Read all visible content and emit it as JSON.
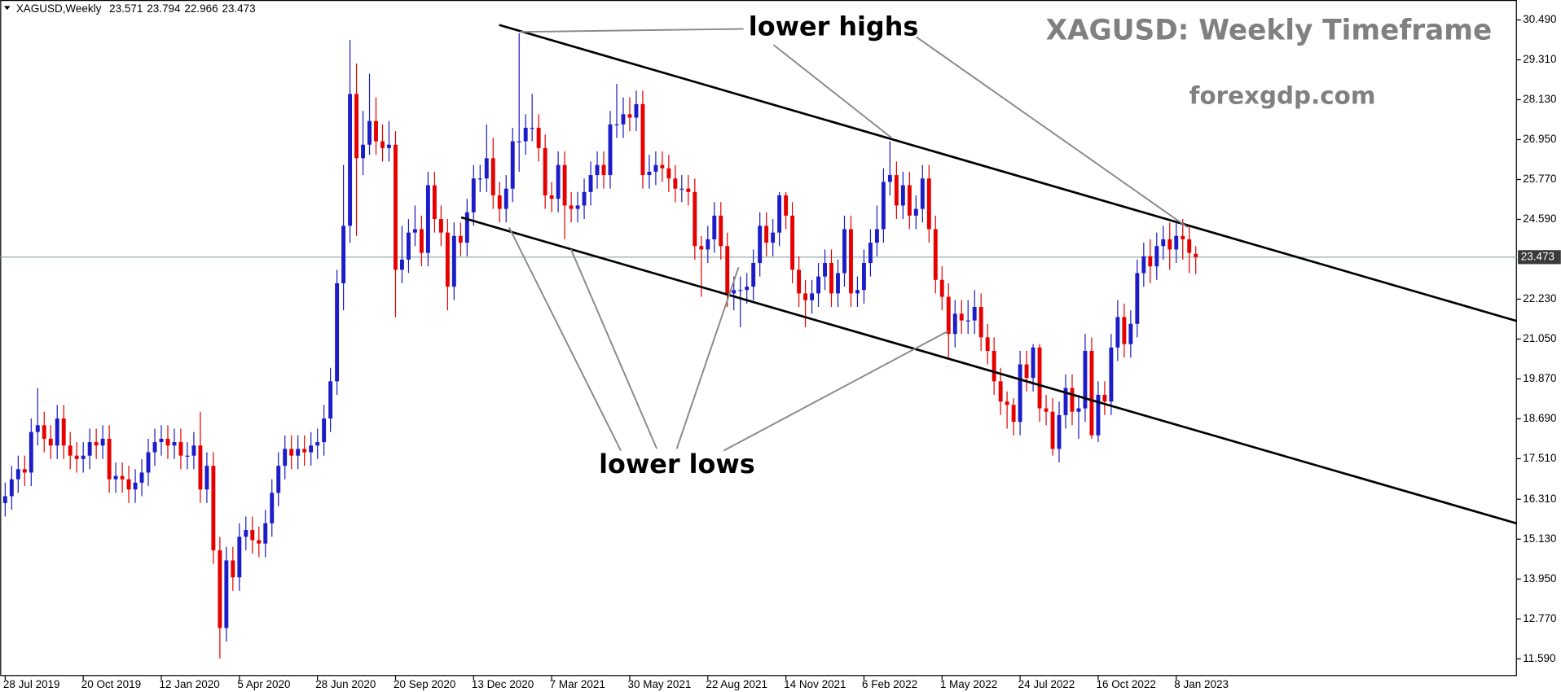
{
  "chart_data": {
    "type": "candlestick",
    "symbol": "XAGUSD,Weekly",
    "title": "XAGUSD: Weekly Timeframe",
    "subtitle": "forexgdp.com",
    "annotations": [
      "lower highs",
      "lower lows"
    ],
    "up_color": "#1c1cc8",
    "down_color": "#e60000",
    "last_price": 23.473,
    "ylim": [
      11.08,
      31.08
    ],
    "yticks": [
      {
        "value": 30.49,
        "label": "30.490"
      },
      {
        "value": 29.31,
        "label": "29.310"
      },
      {
        "value": 28.13,
        "label": "28.130"
      },
      {
        "value": 26.95,
        "label": "26.950"
      },
      {
        "value": 25.77,
        "label": "25.770"
      },
      {
        "value": 24.59,
        "label": "24.590"
      },
      {
        "value": 22.23,
        "label": "22.230"
      },
      {
        "value": 21.05,
        "label": "21.050"
      },
      {
        "value": 19.87,
        "label": "19.870"
      },
      {
        "value": 18.69,
        "label": "18.690"
      },
      {
        "value": 17.51,
        "label": "17.510"
      },
      {
        "value": 16.31,
        "label": "16.310"
      },
      {
        "value": 15.13,
        "label": "15.130"
      },
      {
        "value": 13.95,
        "label": "13.950"
      },
      {
        "value": 12.77,
        "label": "12.770"
      },
      {
        "value": 11.59,
        "label": "11.590"
      }
    ],
    "categories": [
      "28 Jul 2019",
      null,
      null,
      null,
      null,
      null,
      null,
      null,
      null,
      null,
      null,
      null,
      "20 Oct 2019",
      null,
      null,
      null,
      null,
      null,
      null,
      null,
      null,
      null,
      null,
      null,
      "12 Jan 2020",
      null,
      null,
      null,
      null,
      null,
      null,
      null,
      null,
      null,
      null,
      null,
      "5 Apr 2020",
      null,
      null,
      null,
      null,
      null,
      null,
      null,
      null,
      null,
      null,
      null,
      "28 Jun 2020",
      null,
      null,
      null,
      null,
      null,
      null,
      null,
      null,
      null,
      null,
      null,
      "20 Sep 2020",
      null,
      null,
      null,
      null,
      null,
      null,
      null,
      null,
      null,
      null,
      null,
      "13 Dec 2020",
      null,
      null,
      null,
      null,
      null,
      null,
      null,
      null,
      null,
      null,
      null,
      "7 Mar 2021",
      null,
      null,
      null,
      null,
      null,
      null,
      null,
      null,
      null,
      null,
      null,
      "30 May 2021",
      null,
      null,
      null,
      null,
      null,
      null,
      null,
      null,
      null,
      null,
      null,
      "22 Aug 2021",
      null,
      null,
      null,
      null,
      null,
      null,
      null,
      null,
      null,
      null,
      null,
      "14 Nov 2021",
      null,
      null,
      null,
      null,
      null,
      null,
      null,
      null,
      null,
      null,
      null,
      "6 Feb 2022",
      null,
      null,
      null,
      null,
      null,
      null,
      null,
      null,
      null,
      null,
      null,
      "1 May 2022",
      null,
      null,
      null,
      null,
      null,
      null,
      null,
      null,
      null,
      null,
      null,
      "24 Jul 2022",
      null,
      null,
      null,
      null,
      null,
      null,
      null,
      null,
      null,
      null,
      null,
      "16 Oct 2022",
      null,
      null,
      null,
      null,
      null,
      null,
      null,
      null,
      null,
      null,
      null,
      "8 Jan 2023",
      null,
      null,
      null
    ],
    "open": [
      16.2,
      16.4,
      16.9,
      17.2,
      17.1,
      18.3,
      18.5,
      18.1,
      17.9,
      18.7,
      17.9,
      17.6,
      17.5,
      17.6,
      18.0,
      17.9,
      18.1,
      16.9,
      17.0,
      16.9,
      16.6,
      16.8,
      17.1,
      17.7,
      18.0,
      18.1,
      17.9,
      18.0,
      17.6,
      17.6,
      17.9,
      16.6,
      17.3,
      14.8,
      12.5,
      14.5,
      14.0,
      15.2,
      15.4,
      15.1,
      15.0,
      15.6,
      16.5,
      17.3,
      17.8,
      17.6,
      17.8,
      17.7,
      17.9,
      18.0,
      18.7,
      19.8,
      22.7,
      24.4,
      28.3,
      26.4,
      26.8,
      27.5,
      26.9,
      26.7,
      26.8,
      23.1,
      23.4,
      24.2,
      24.3,
      23.6,
      25.6,
      24.6,
      24.2,
      22.6,
      24.1,
      23.9,
      24.8,
      25.8,
      25.8,
      26.4,
      25.3,
      24.9,
      25.5,
      26.9,
      26.9,
      27.3,
      27.3,
      26.7,
      25.3,
      25.2,
      26.2,
      25.0,
      24.9,
      25.0,
      25.4,
      25.9,
      26.2,
      25.9,
      27.4,
      27.4,
      27.7,
      27.6,
      28.0,
      25.9,
      26.0,
      26.2,
      26.1,
      25.8,
      25.5,
      25.5,
      25.4,
      23.8,
      23.7,
      24.0,
      24.7,
      23.8,
      22.4,
      22.5,
      22.5,
      22.6,
      23.3,
      24.4,
      23.9,
      24.2,
      25.3,
      24.7,
      23.1,
      22.4,
      22.2,
      22.4,
      22.9,
      23.3,
      22.4,
      23.0,
      24.3,
      22.4,
      22.5,
      23.3,
      23.9,
      24.3,
      25.7,
      25.9,
      25.0,
      25.6,
      24.7,
      24.9,
      25.8,
      24.3,
      22.8,
      22.3,
      21.2,
      21.8,
      21.6,
      21.6,
      22.0,
      21.1,
      20.7,
      19.8,
      19.2,
      19.1,
      18.6,
      20.3,
      19.9,
      20.8,
      19.0,
      18.9,
      17.8,
      18.8,
      19.6,
      18.9,
      19.0,
      20.7,
      18.2,
      19.4,
      19.2,
      20.8,
      21.7,
      20.9,
      21.5,
      23.0,
      23.5,
      23.2,
      23.8,
      24.0,
      23.7,
      24.1,
      24.0,
      23.571
    ],
    "high": [
      16.8,
      17.3,
      17.6,
      17.6,
      18.7,
      19.6,
      18.9,
      18.5,
      19.1,
      19.1,
      18.3,
      18.0,
      18.0,
      18.4,
      18.4,
      18.5,
      18.5,
      17.4,
      17.4,
      17.3,
      17.2,
      17.5,
      18.1,
      18.4,
      18.5,
      18.5,
      18.4,
      18.4,
      18.0,
      18.3,
      18.9,
      17.7,
      17.7,
      15.2,
      14.9,
      14.9,
      15.6,
      15.8,
      15.8,
      15.5,
      16.0,
      16.9,
      17.7,
      18.2,
      18.2,
      18.2,
      18.2,
      18.3,
      18.4,
      19.1,
      20.2,
      23.1,
      26.2,
      29.9,
      29.2,
      27.8,
      28.9,
      28.2,
      27.4,
      27.5,
      27.2,
      24.4,
      24.6,
      25.0,
      24.7,
      26.0,
      26.0,
      25.0,
      24.6,
      24.5,
      24.5,
      25.2,
      26.2,
      26.2,
      27.4,
      27.0,
      25.7,
      25.9,
      27.3,
      30.1,
      27.7,
      28.3,
      27.7,
      27.1,
      25.7,
      26.6,
      26.6,
      25.4,
      25.4,
      25.8,
      26.3,
      26.6,
      26.6,
      27.8,
      28.6,
      28.2,
      28.2,
      28.4,
      28.4,
      26.5,
      26.6,
      26.6,
      26.5,
      26.2,
      25.9,
      25.9,
      25.8,
      24.1,
      24.4,
      25.1,
      25.1,
      24.2,
      22.9,
      22.9,
      23.0,
      23.7,
      24.8,
      24.8,
      24.6,
      25.4,
      25.4,
      25.1,
      23.5,
      22.8,
      22.8,
      23.3,
      23.7,
      23.7,
      23.4,
      24.7,
      24.7,
      22.9,
      23.7,
      24.3,
      25.0,
      26.1,
      26.9,
      26.3,
      26.0,
      26.0,
      25.3,
      26.2,
      26.2,
      24.7,
      23.2,
      22.7,
      22.2,
      22.2,
      22.2,
      22.5,
      22.4,
      21.5,
      21.1,
      20.2,
      19.5,
      19.3,
      20.7,
      20.7,
      20.9,
      20.9,
      19.4,
      19.3,
      19.2,
      20.0,
      20.0,
      19.4,
      21.2,
      21.1,
      19.8,
      19.8,
      21.2,
      22.2,
      22.1,
      21.9,
      23.4,
      23.9,
      24.0,
      24.2,
      24.4,
      24.5,
      24.5,
      24.6,
      24.4,
      23.794
    ],
    "low": [
      15.8,
      16.0,
      16.5,
      16.7,
      16.7,
      17.9,
      17.7,
      17.5,
      17.5,
      17.5,
      17.2,
      17.1,
      17.1,
      17.2,
      17.5,
      17.5,
      16.5,
      16.5,
      16.5,
      16.2,
      16.2,
      16.4,
      16.7,
      17.3,
      17.6,
      17.5,
      17.5,
      17.2,
      17.2,
      17.2,
      16.2,
      16.2,
      14.4,
      11.6,
      12.1,
      13.6,
      13.6,
      14.8,
      14.7,
      14.6,
      14.6,
      15.2,
      16.1,
      16.9,
      17.2,
      17.2,
      17.3,
      17.3,
      17.5,
      17.6,
      18.3,
      19.4,
      21.9,
      23.9,
      24.1,
      25.9,
      26.5,
      26.5,
      26.3,
      26.3,
      21.7,
      22.7,
      23.0,
      23.8,
      23.2,
      23.2,
      24.2,
      23.8,
      21.9,
      22.2,
      23.5,
      23.5,
      24.4,
      25.4,
      25.4,
      24.9,
      24.5,
      24.5,
      25.1,
      26.0,
      26.5,
      26.9,
      26.3,
      24.9,
      24.8,
      24.8,
      24.0,
      24.5,
      24.5,
      24.6,
      25.0,
      25.5,
      25.5,
      25.5,
      27.0,
      27.0,
      27.2,
      27.2,
      25.5,
      25.5,
      25.6,
      25.7,
      25.4,
      25.1,
      25.1,
      25.0,
      23.4,
      22.3,
      23.3,
      23.6,
      23.4,
      22.0,
      21.9,
      21.4,
      22.1,
      22.2,
      22.9,
      23.5,
      23.5,
      23.8,
      24.3,
      22.7,
      22.0,
      21.4,
      21.8,
      22.0,
      22.5,
      22.0,
      22.0,
      22.6,
      22.0,
      22.0,
      22.1,
      22.9,
      23.5,
      23.9,
      25.3,
      24.6,
      24.6,
      24.3,
      24.3,
      24.5,
      23.9,
      22.4,
      21.9,
      20.5,
      20.8,
      21.2,
      21.2,
      21.2,
      20.7,
      20.3,
      19.4,
      18.8,
      18.4,
      18.2,
      18.2,
      19.5,
      19.5,
      18.6,
      18.5,
      17.6,
      17.4,
      18.4,
      18.5,
      18.1,
      18.6,
      18.1,
      18.0,
      18.8,
      18.8,
      20.4,
      20.5,
      20.5,
      21.1,
      22.6,
      22.7,
      22.8,
      23.4,
      23.1,
      23.3,
      23.4,
      23.0,
      22.966
    ],
    "close": [
      16.4,
      16.9,
      17.2,
      17.1,
      18.3,
      18.5,
      18.1,
      17.9,
      18.7,
      17.9,
      17.6,
      17.5,
      17.6,
      18.0,
      17.9,
      18.1,
      16.9,
      17.0,
      16.9,
      16.6,
      16.8,
      17.1,
      17.7,
      18.0,
      18.1,
      17.9,
      18.0,
      17.6,
      17.6,
      17.9,
      16.6,
      17.3,
      14.8,
      12.5,
      14.5,
      14.0,
      15.2,
      15.4,
      15.1,
      15.0,
      15.6,
      16.5,
      17.3,
      17.8,
      17.6,
      17.8,
      17.7,
      17.9,
      18.0,
      18.7,
      19.8,
      22.7,
      24.4,
      28.3,
      26.4,
      26.8,
      27.5,
      26.9,
      26.7,
      26.8,
      23.1,
      23.4,
      24.2,
      24.3,
      23.6,
      25.6,
      24.6,
      24.2,
      22.6,
      24.1,
      23.9,
      24.8,
      25.8,
      25.8,
      26.4,
      25.3,
      24.9,
      25.5,
      26.9,
      26.9,
      27.3,
      27.3,
      26.7,
      25.3,
      25.2,
      26.2,
      25.0,
      24.9,
      25.0,
      25.4,
      25.9,
      26.2,
      25.9,
      27.4,
      27.4,
      27.7,
      27.6,
      28.0,
      25.9,
      26.0,
      26.2,
      26.1,
      25.8,
      25.5,
      25.5,
      25.4,
      23.8,
      23.7,
      24.0,
      24.7,
      23.8,
      22.4,
      22.5,
      22.5,
      22.6,
      23.3,
      24.4,
      23.9,
      24.2,
      25.3,
      24.7,
      23.1,
      22.4,
      22.2,
      22.4,
      22.9,
      23.3,
      22.4,
      23.0,
      24.3,
      22.4,
      22.5,
      23.3,
      23.9,
      24.3,
      25.7,
      25.9,
      25.0,
      25.6,
      24.7,
      24.9,
      25.8,
      24.3,
      22.8,
      22.3,
      21.2,
      21.8,
      21.6,
      21.6,
      22.0,
      21.1,
      20.7,
      19.8,
      19.2,
      19.1,
      18.6,
      20.3,
      19.9,
      20.8,
      19.0,
      18.9,
      17.8,
      18.8,
      19.6,
      18.9,
      19.0,
      20.7,
      18.2,
      19.4,
      19.2,
      20.8,
      21.7,
      20.9,
      21.5,
      23.0,
      23.5,
      23.2,
      23.8,
      24.0,
      23.7,
      24.1,
      24.0,
      23.6,
      23.473
    ]
  }
}
